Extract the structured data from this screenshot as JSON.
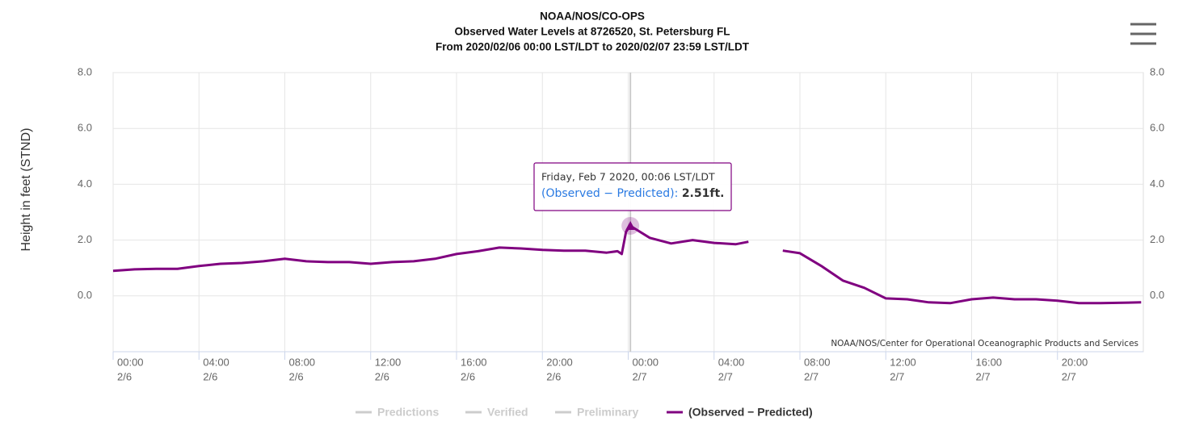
{
  "chart_data": {
    "type": "line",
    "title_lines": [
      "NOAA/NOS/CO-OPS",
      "Observed Water Levels at 8726520, St. Petersburg FL",
      "From 2020/02/06 00:00 LST/LDT to 2020/02/07 23:59 LST/LDT"
    ],
    "ylabel": "Height in feet (STND)",
    "x": [
      0,
      1,
      2,
      3,
      4,
      5,
      6,
      7,
      8,
      9,
      10,
      11,
      12,
      13,
      14,
      15,
      16,
      17,
      18,
      19,
      20,
      21,
      22,
      23,
      23.5,
      23.7,
      23.9,
      24.1,
      25,
      26,
      27,
      28,
      29,
      29.6,
      30,
      31.2,
      32,
      33,
      34,
      35,
      36,
      37,
      38,
      39,
      40,
      41,
      42,
      43,
      44,
      45,
      46,
      47.9
    ],
    "series": [
      {
        "name": "(Observed − Predicted)",
        "color": "#800080",
        "values": [
          0.9,
          0.95,
          0.97,
          0.97,
          1.07,
          1.15,
          1.18,
          1.24,
          1.33,
          1.24,
          1.21,
          1.21,
          1.15,
          1.21,
          1.24,
          1.33,
          1.5,
          1.6,
          1.73,
          1.7,
          1.65,
          1.62,
          1.62,
          1.55,
          1.6,
          1.5,
          2.3,
          2.51,
          2.08,
          1.88,
          2.0,
          1.9,
          1.85,
          1.94,
          null,
          1.62,
          1.53,
          1.07,
          0.55,
          0.29,
          -0.09,
          -0.12,
          -0.23,
          -0.26,
          -0.12,
          -0.06,
          -0.12,
          -0.12,
          -0.17,
          -0.26,
          -0.26,
          -0.23
        ]
      }
    ],
    "hidden_series": [
      "Predictions",
      "Verified",
      "Preliminary"
    ],
    "hidden_color": "#cccccc",
    "xlim": [
      0,
      48
    ],
    "xticks": [
      {
        "value": 0,
        "label": [
          "00:00",
          "2/6"
        ]
      },
      {
        "value": 4,
        "label": [
          "04:00",
          "2/6"
        ]
      },
      {
        "value": 8,
        "label": [
          "08:00",
          "2/6"
        ]
      },
      {
        "value": 12,
        "label": [
          "12:00",
          "2/6"
        ]
      },
      {
        "value": 16,
        "label": [
          "16:00",
          "2/6"
        ]
      },
      {
        "value": 20,
        "label": [
          "20:00",
          "2/6"
        ]
      },
      {
        "value": 24,
        "label": [
          "00:00",
          "2/7"
        ]
      },
      {
        "value": 28,
        "label": [
          "04:00",
          "2/7"
        ]
      },
      {
        "value": 32,
        "label": [
          "08:00",
          "2/7"
        ]
      },
      {
        "value": 36,
        "label": [
          "12:00",
          "2/7"
        ]
      },
      {
        "value": 40,
        "label": [
          "16:00",
          "2/7"
        ]
      },
      {
        "value": 44,
        "label": [
          "20:00",
          "2/7"
        ]
      }
    ],
    "ylim": [
      -2,
      8
    ],
    "yticks": [
      {
        "value": 0,
        "label": "0.0"
      },
      {
        "value": 2,
        "label": "2.0"
      },
      {
        "value": 4,
        "label": "4.0"
      },
      {
        "value": 6,
        "label": "6.0"
      },
      {
        "value": 8,
        "label": "8.0"
      }
    ],
    "y2lim": [
      -2,
      8
    ],
    "y2ticks": [
      {
        "value": 0,
        "label": "0.0"
      },
      {
        "value": 2,
        "label": "2.0"
      },
      {
        "value": 4,
        "label": "4.0"
      },
      {
        "value": 6,
        "label": "6.0"
      },
      {
        "value": 8,
        "label": "8.0"
      }
    ],
    "grid": true,
    "tooltip": {
      "x": 24.1,
      "value": 2.51,
      "header": "Friday, Feb 7 2020, 00:06 LST/LDT",
      "series_label": "(Observed − Predicted):",
      "value_label": "2.51ft."
    },
    "credits": "NOAA/NOS/Center for Operational Oceanographic Products and Services"
  }
}
